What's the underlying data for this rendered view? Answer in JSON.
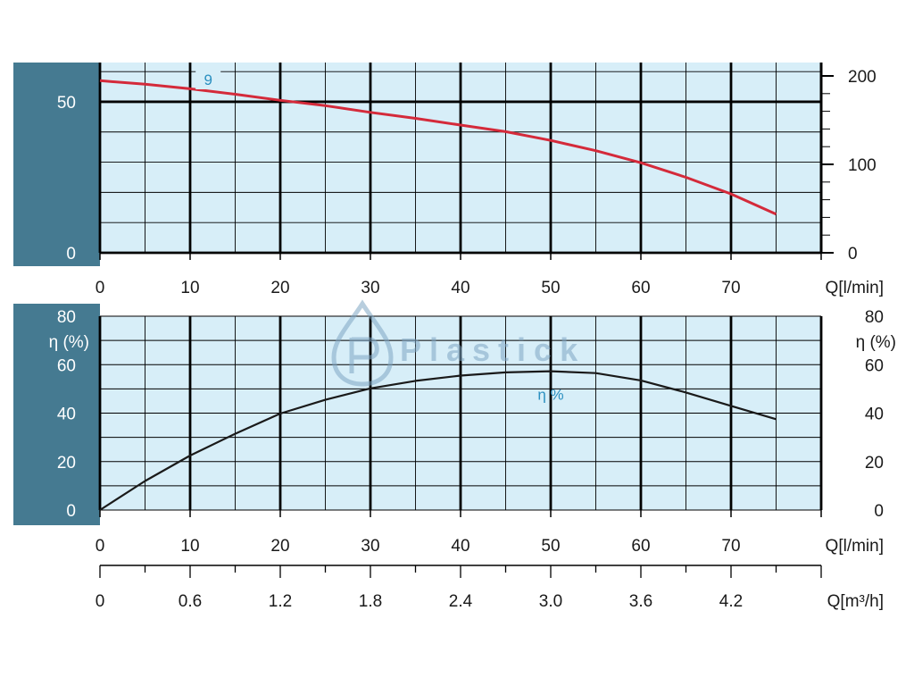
{
  "colors": {
    "plot_bg": "#d7eef8",
    "side_band": "#457a91",
    "grid_major": "#000000",
    "head_curve": "#d42a3a",
    "eff_curve": "#1a1a1a",
    "label_accent": "#2a8fc0"
  },
  "watermark": {
    "text": "Plastick",
    "icon": "water-drop-logo-icon"
  },
  "chart_data": [
    {
      "type": "line",
      "x_range": [
        0,
        80
      ],
      "x_ticks": [
        "0",
        "10",
        "20",
        "30",
        "40",
        "50",
        "60",
        "70"
      ],
      "x_tick_values": [
        0,
        10,
        20,
        30,
        40,
        50,
        60,
        70
      ],
      "xlabel": "Q[l/min]",
      "left_ticks": [
        "0",
        "50"
      ],
      "left_tick_values": [
        0,
        50
      ],
      "right_ticks": [
        "0",
        "100",
        "200"
      ],
      "right_tick_values": [
        0,
        100,
        200
      ],
      "right_range": [
        0,
        200
      ],
      "ylim": [
        0,
        63
      ],
      "grid": true,
      "series": [
        {
          "name": "9",
          "x": [
            0,
            5,
            10,
            15,
            20,
            25,
            30,
            35,
            40,
            45,
            50,
            55,
            60,
            65,
            70,
            75
          ],
          "y": [
            57,
            55.8,
            54.3,
            52.5,
            50.5,
            48.7,
            46.5,
            44.5,
            42.3,
            40.1,
            37.2,
            33.8,
            29.8,
            25,
            19.5,
            12.8
          ]
        }
      ]
    },
    {
      "type": "line",
      "x_range": [
        0,
        80
      ],
      "x_ticks": [
        "0",
        "10",
        "20",
        "30",
        "40",
        "50",
        "60",
        "70"
      ],
      "x_tick_values": [
        0,
        10,
        20,
        30,
        40,
        50,
        60,
        70
      ],
      "xlabel": "Q[l/min]",
      "secondary_x_ticks": [
        "0",
        "0.6",
        "1.2",
        "1.8",
        "2.4",
        "3.0",
        "3.6",
        "4.2"
      ],
      "secondary_x_tick_values": [
        0,
        0.6,
        1.2,
        1.8,
        2.4,
        3.0,
        3.6,
        4.2
      ],
      "secondary_xlabel": "Q[m³/h]",
      "left_ticks": [
        "0",
        "20",
        "40",
        "60",
        "80"
      ],
      "left_tick_values": [
        0,
        20,
        40,
        60,
        80
      ],
      "right_ticks": [
        "0",
        "20",
        "40",
        "60",
        "80"
      ],
      "right_tick_values": [
        0,
        20,
        40,
        60,
        80
      ],
      "ylabel_left": "η (%)",
      "ylabel_right": "η (%)",
      "ylim": [
        0,
        80
      ],
      "grid": true,
      "series": [
        {
          "name": "η %",
          "x": [
            0,
            5,
            10,
            15,
            20,
            25,
            30,
            35,
            40,
            45,
            50,
            55,
            60,
            65,
            70,
            75
          ],
          "y": [
            0,
            12,
            22.5,
            31.5,
            39.8,
            45.5,
            50.2,
            53.3,
            55.5,
            56.8,
            57.3,
            56.5,
            53.5,
            48.5,
            43,
            37.5
          ]
        }
      ]
    }
  ]
}
